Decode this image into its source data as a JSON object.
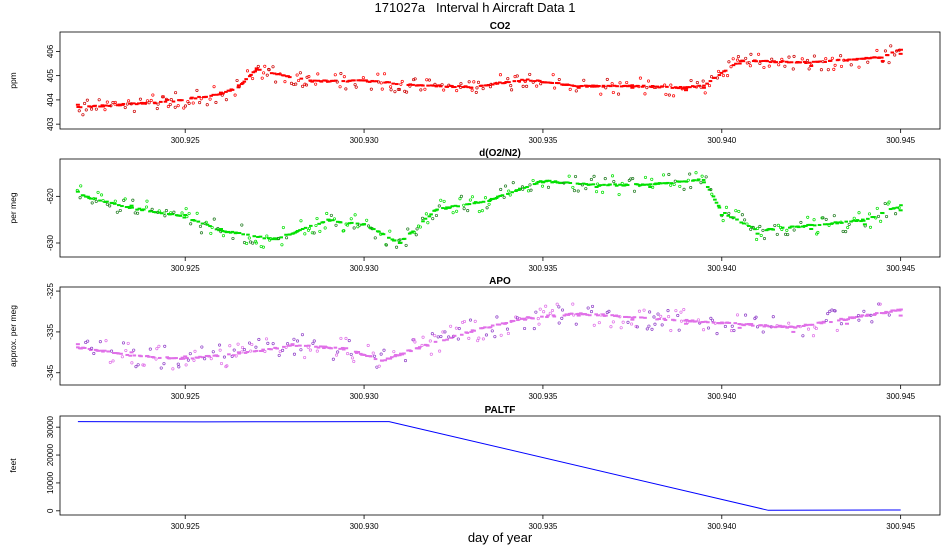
{
  "figure": {
    "title": "171027a   Interval h Aircraft Data 1",
    "xlabel": "day of year"
  },
  "chart_data": [
    {
      "type": "scatter",
      "title": "CO2",
      "ylabel": "ppm",
      "color": "#ff0000",
      "xlim": [
        300.9215,
        300.9461
      ],
      "ylim": [
        402.8,
        406.8
      ],
      "xticks": [
        "300.925",
        "300.930",
        "300.935",
        "300.940",
        "300.945"
      ],
      "yticks": [
        "403",
        "404",
        "405",
        "406"
      ],
      "series": [
        {
          "x": [
            300.922,
            300.9245,
            300.926,
            300.9265,
            300.927,
            300.9285,
            300.93,
            300.9315,
            300.933,
            300.9345,
            300.936,
            300.9375,
            300.939,
            300.9395,
            300.9405,
            300.9425,
            300.9445,
            300.945
          ],
          "y": [
            403.8,
            404.0,
            404.3,
            404.6,
            405.3,
            404.8,
            404.8,
            404.6,
            404.5,
            404.8,
            404.5,
            404.5,
            404.4,
            404.5,
            405.5,
            405.4,
            405.6,
            405.9
          ]
        }
      ]
    },
    {
      "type": "scatter",
      "title": "d(O2/N2)",
      "ylabel": "per meg",
      "color": "#00e000",
      "xlim": [
        300.9215,
        300.9461
      ],
      "ylim": [
        -633,
        -612
      ],
      "xticks": [
        "300.925",
        "300.930",
        "300.935",
        "300.940",
        "300.945"
      ],
      "yticks": [
        "-630",
        "-620"
      ],
      "series": [
        {
          "x": [
            300.922,
            300.9235,
            300.925,
            300.926,
            300.9275,
            300.929,
            300.93,
            300.931,
            300.932,
            300.9335,
            300.935,
            300.9365,
            300.938,
            300.9395,
            300.94,
            300.941,
            300.9425,
            300.944,
            300.945
          ],
          "y": [
            -619,
            -622,
            -624,
            -627,
            -629,
            -625,
            -626,
            -630,
            -623,
            -621,
            -617,
            -618,
            -618,
            -617,
            -624,
            -628,
            -627,
            -626,
            -623
          ]
        }
      ]
    },
    {
      "type": "scatter",
      "title": "APO",
      "ylabel": "approx. per meg",
      "color": "#e070e8",
      "xlim": [
        300.9215,
        300.9461
      ],
      "ylim": [
        -348,
        -324
      ],
      "xticks": [
        "300.925",
        "300.930",
        "300.935",
        "300.940",
        "300.945"
      ],
      "yticks": [
        "-345",
        "-335",
        "-325"
      ],
      "series": [
        {
          "x": [
            300.922,
            300.9235,
            300.925,
            300.9265,
            300.928,
            300.9295,
            300.9305,
            300.9315,
            300.933,
            300.9345,
            300.936,
            300.9375,
            300.939,
            300.9405,
            300.942,
            300.9435,
            300.945
          ],
          "y": [
            -338,
            -340,
            -341,
            -340,
            -338,
            -339,
            -342,
            -339,
            -335,
            -332,
            -331,
            -332,
            -333,
            -334,
            -335,
            -333,
            -331
          ]
        }
      ]
    },
    {
      "type": "line",
      "title": "PALTF",
      "ylabel": "feet",
      "color": "#0000ff",
      "xlim": [
        300.9215,
        300.9461
      ],
      "ylim": [
        -1500,
        34000
      ],
      "xticks": [
        "300.925",
        "300.930",
        "300.935",
        "300.940",
        "300.945"
      ],
      "yticks": [
        "0",
        "10000",
        "20000",
        "30000"
      ],
      "series": [
        {
          "x": [
            300.922,
            300.9255,
            300.928,
            300.9307,
            300.9413,
            300.945
          ],
          "y": [
            32000,
            31900,
            31950,
            32000,
            200,
            300
          ]
        }
      ]
    }
  ]
}
